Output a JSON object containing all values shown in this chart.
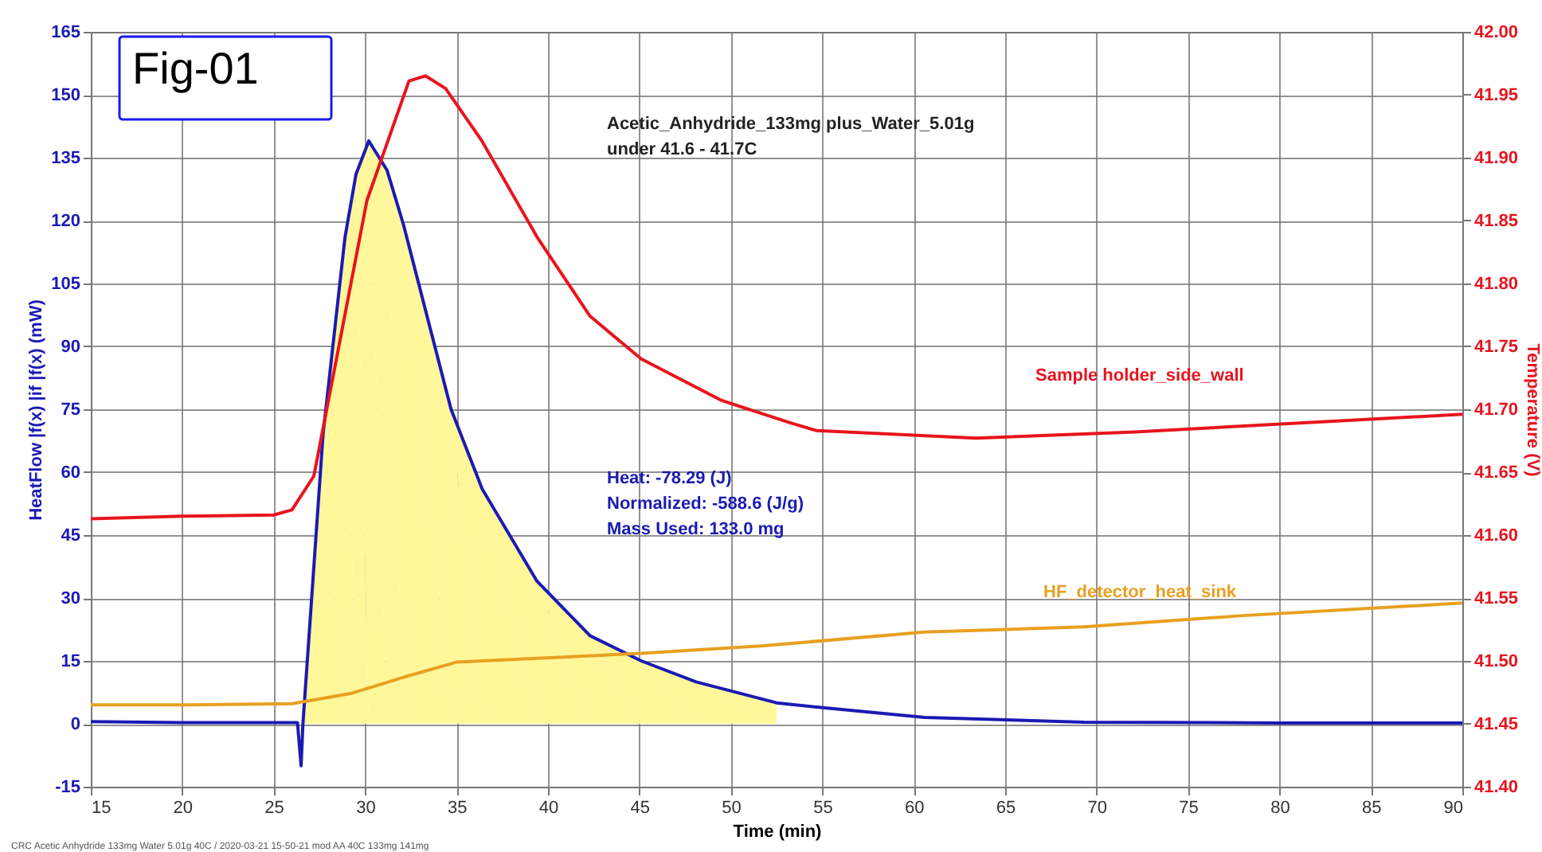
{
  "chart_data": {
    "type": "line",
    "xlabel": "Time (min)",
    "ylabel": "HeatFlow |f(x) |if |f(x) (mW)",
    "y2label": "Temperature (V)",
    "xlim": [
      15,
      90
    ],
    "xticks": [
      15,
      20,
      25,
      30,
      35,
      40,
      45,
      50,
      55,
      60,
      65,
      70,
      75,
      80,
      85,
      90
    ],
    "ylim": [
      -15,
      165
    ],
    "yticks": [
      -15,
      0,
      15,
      30,
      45,
      60,
      75,
      90,
      105,
      120,
      135,
      150,
      165
    ],
    "y2lim": [
      41.4,
      42.0
    ],
    "y2ticks": [
      {
        "value": 41.4,
        "label": "41.40"
      },
      {
        "value": 41.45,
        "label": "41.45"
      },
      {
        "value": 41.5,
        "label": "41.50"
      },
      {
        "value": 41.55,
        "label": "41.55"
      },
      {
        "value": 41.6,
        "label": "41.60"
      },
      {
        "value": 41.65,
        "label": "41.65"
      },
      {
        "value": 41.7,
        "label": "41.70"
      },
      {
        "value": 41.75,
        "label": "41.75"
      },
      {
        "value": 41.8,
        "label": "41.80"
      },
      {
        "value": 41.85,
        "label": "41.85"
      },
      {
        "value": 41.9,
        "label": "41.90"
      },
      {
        "value": 41.95,
        "label": "41.95"
      },
      {
        "value": 42.0,
        "label": "42.00"
      }
    ],
    "grid": true,
    "legend": false,
    "marker": "none",
    "line_style": "solid",
    "series": [
      {
        "type": "area",
        "color": "#fff799",
        "x": [
          26.6,
          27.7,
          28.9,
          29.5,
          30.2,
          31.2,
          32.1,
          34.7,
          36.4,
          39.4,
          42.3,
          45.1,
          48.1,
          52.5
        ],
        "values": [
          0,
          69,
          116,
          131,
          139,
          132,
          119,
          75,
          56,
          34,
          21,
          15,
          10,
          5
        ]
      },
      {
        "color": "#1a1ab4",
        "x": [
          15,
          20,
          25,
          26.3,
          26.5,
          26.6,
          27.7,
          28.9,
          29.5,
          30.2,
          31.2,
          32.1,
          34.7,
          36.4,
          39.4,
          42.3,
          45.1,
          48.1,
          52.5,
          54.7,
          60.6,
          69.3,
          80,
          90
        ],
        "values": [
          0.5,
          0.3,
          0.3,
          0.3,
          -10,
          0,
          69,
          116,
          131,
          139,
          132,
          119,
          75,
          56,
          34,
          21,
          15,
          10,
          5,
          4,
          1.5,
          0.4,
          0.2,
          0.2
        ]
      },
      {
        "name": "Sample holder_side_wall",
        "color": "#e8141e",
        "axis": "y2",
        "x": [
          15,
          20,
          25,
          26,
          27.2,
          30.1,
          32.4,
          33.3,
          34.4,
          36.4,
          39.4,
          42.3,
          45.1,
          49.5,
          53.3,
          54.7,
          63.4,
          72.1,
          80.9,
          90
        ],
        "values": [
          41.613,
          41.615,
          41.616,
          41.62,
          41.647,
          41.866,
          41.961,
          41.965,
          41.955,
          41.913,
          41.837,
          41.774,
          41.74,
          41.707,
          41.689,
          41.683,
          41.677,
          41.682,
          41.689,
          41.696
        ]
      },
      {
        "name": "HF_detector_heat_sink",
        "color": "#e8a020",
        "axis": "y2",
        "x": [
          15,
          20,
          26,
          29.2,
          32.1,
          35,
          39.4,
          45.1,
          51.8,
          60.6,
          69.3,
          78,
          90
        ],
        "values": [
          41.465,
          41.465,
          41.466,
          41.474,
          41.487,
          41.499,
          41.502,
          41.506,
          41.512,
          41.523,
          41.527,
          41.536,
          41.546
        ]
      }
    ],
    "annotations": [
      "Fig-01",
      "Acetic_Anhydride_133mg plus_Water_5.01g\nunder 41.6 - 41.7C",
      "Heat:  -78.29 (J)\nNormalized:  -588.6 (J/g)\nMass Used:  133.0 mg",
      "CRC Acetic Anhydride 133mg Water 5.01g 40C / 2020-03-21 15-50-21 mod AA 40C 133mg 141mg"
    ]
  }
}
